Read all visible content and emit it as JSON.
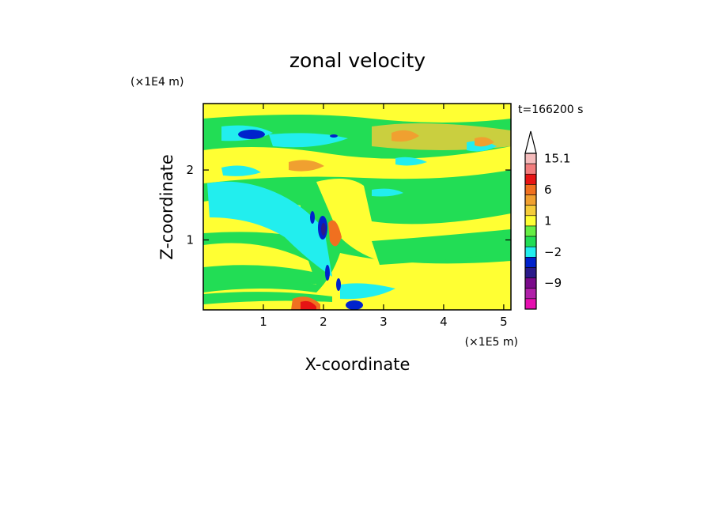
{
  "chart_data": {
    "type": "heatmap",
    "title": "zonal velocity",
    "xlabel": "X-coordinate",
    "ylabel": "Z-coordinate",
    "x_unit_label": "(×1E5 m)",
    "y_unit_label": "(×1E4 m)",
    "time_label": "t=166200 s",
    "xlim": [
      0,
      5.12
    ],
    "ylim": [
      0,
      2.95
    ],
    "x_ticks": [
      {
        "value": 1,
        "label": "1"
      },
      {
        "value": 2,
        "label": "2"
      },
      {
        "value": 3,
        "label": "3"
      },
      {
        "value": 4,
        "label": "4"
      },
      {
        "value": 5,
        "label": "5"
      }
    ],
    "y_ticks": [
      {
        "value": 1,
        "label": "1"
      },
      {
        "value": 2,
        "label": "2"
      }
    ],
    "colorbar": {
      "levels_top_to_bottom": [
        {
          "color": "#f5bcbc",
          "label": "15.1"
        },
        {
          "color": "#f27d7d",
          "label": ""
        },
        {
          "color": "#e71414",
          "label": ""
        },
        {
          "color": "#f07020",
          "label": "6"
        },
        {
          "color": "#f0a030",
          "label": ""
        },
        {
          "color": "#f5cc3a",
          "label": ""
        },
        {
          "color": "#ffff33",
          "label": "1"
        },
        {
          "color": "#66ee44",
          "label": ""
        },
        {
          "color": "#22dd55",
          "label": ""
        },
        {
          "color": "#22eeee",
          "label": "−2"
        },
        {
          "color": "#0022cc",
          "label": ""
        },
        {
          "color": "#2a1a8a",
          "label": ""
        },
        {
          "color": "#7a0a8a",
          "label": "−9"
        },
        {
          "color": "#b020a8",
          "label": ""
        },
        {
          "color": "#e610b0",
          "label": ""
        }
      ]
    },
    "contour_regions": [
      {
        "level": "green",
        "x": [
          0.0,
          5.12
        ],
        "z": [
          1.8,
          2.8
        ]
      },
      {
        "level": "yellow",
        "x": [
          0.0,
          5.12
        ],
        "z": [
          0.0,
          0.25
        ]
      },
      {
        "level": "cyan",
        "x": [
          1.2,
          1.9
        ],
        "z": [
          0.5,
          1.4
        ]
      },
      {
        "level": "blue",
        "x": [
          0.6,
          1.1
        ],
        "z": [
          2.45,
          2.6
        ]
      },
      {
        "level": "blue",
        "x": [
          1.85,
          2.0
        ],
        "z": [
          1.0,
          1.35
        ]
      },
      {
        "level": "red",
        "x": [
          1.65,
          2.0
        ],
        "z": [
          0.0,
          0.1
        ]
      },
      {
        "level": "blue",
        "x": [
          2.3,
          2.6
        ],
        "z": [
          0.0,
          0.1
        ]
      },
      {
        "level": "orange",
        "x": [
          3.2,
          3.6
        ],
        "z": [
          2.45,
          2.6
        ]
      }
    ]
  }
}
